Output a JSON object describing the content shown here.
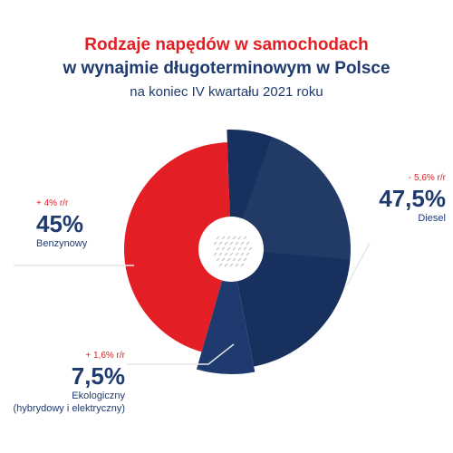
{
  "title_line1": "Rodzaje napędów w samochodach",
  "title_line2": "w wynajmie długoterminowym w Polsce",
  "subtitle": "na koniec IV kwartału 2021 roku",
  "colors": {
    "red": "#e31e24",
    "navy": "#1f3a6e",
    "navy_dark": "#17305e",
    "light_gray": "#e6e6e6"
  },
  "chart_data": {
    "type": "pie",
    "title": "Rodzaje napędów w samochodach w wynajmie długoterminowym w Polsce",
    "subtitle": "na koniec IV kwartału 2021 roku",
    "slices": [
      {
        "label": "Diesel",
        "value": 47.5,
        "value_label": "47,5%",
        "change": "- 5,6% r/r",
        "color": "#1f3a6e"
      },
      {
        "label": "Ekologiczny (hybrydowy i elektryczny)",
        "value": 7.5,
        "value_label": "7,5%",
        "change": "+ 1,6% r/r",
        "color": "#1f3a6e"
      },
      {
        "label": "Benzynowy",
        "value": 45,
        "value_label": "45%",
        "change": "+ 4% r/r",
        "color": "#e31e24"
      }
    ]
  },
  "labels": {
    "benzynowy": {
      "change": "+ 4% r/r",
      "pct": "45%",
      "name": "Benzynowy"
    },
    "diesel": {
      "change": "- 5,6% r/r",
      "pct": "47,5%",
      "name": "Diesel"
    },
    "ekologiczny": {
      "change": "+ 1,6% r/r",
      "pct": "7,5%",
      "name_line1": "Ekologiczny",
      "name_line2": "(hybrydowy i elektryczny)"
    }
  }
}
